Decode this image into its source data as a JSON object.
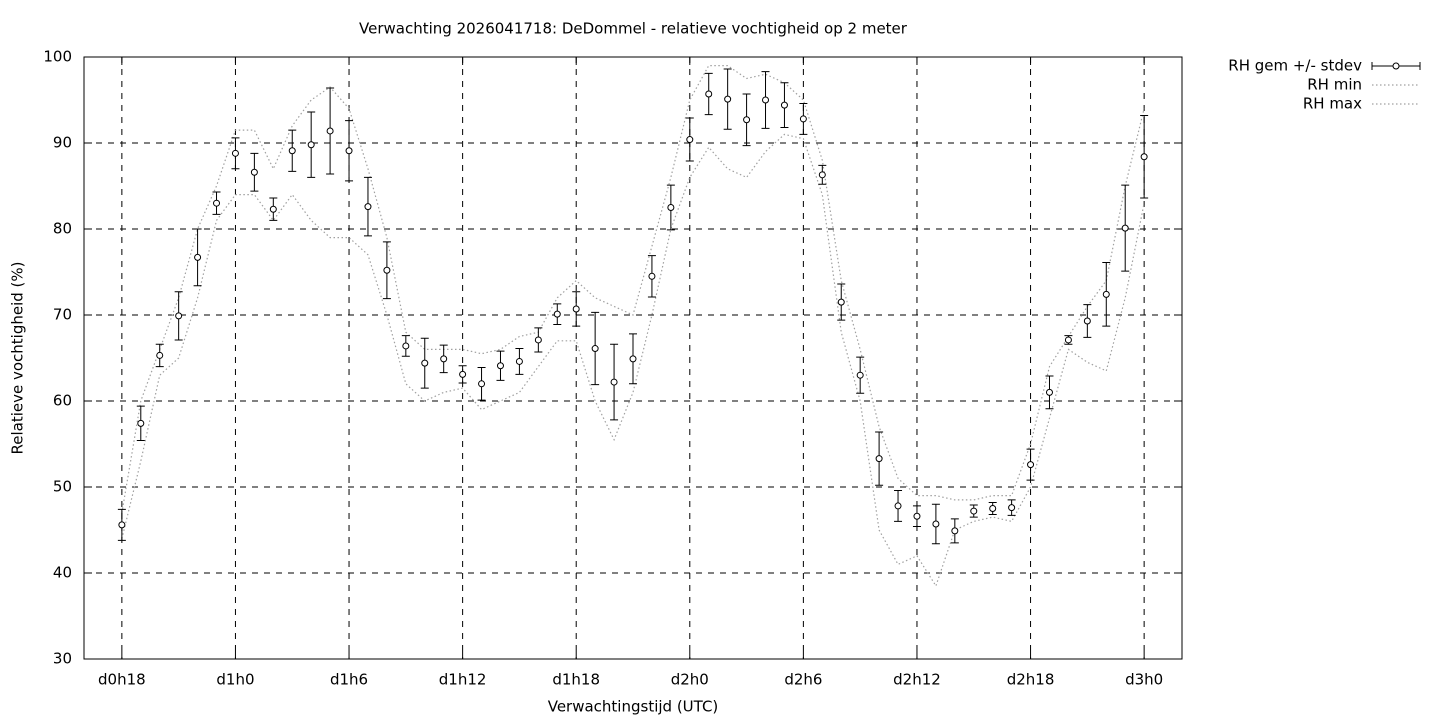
{
  "chart_data": {
    "type": "errorbar",
    "title": "Verwachting 2026041718: DeDommel - relatieve vochtigheid op 2 meter",
    "xlabel": "Verwachtingstijd (UTC)",
    "ylabel": "Relatieve vochtigheid (%)",
    "x": [
      18,
      19,
      20,
      21,
      22,
      23,
      24,
      25,
      26,
      27,
      28,
      29,
      30,
      31,
      32,
      33,
      34,
      35,
      36,
      37,
      38,
      39,
      40,
      41,
      42,
      43,
      44,
      45,
      46,
      47,
      48,
      49,
      50,
      51,
      52,
      53,
      54,
      55,
      56,
      57,
      58,
      59,
      60,
      61,
      62,
      63,
      64,
      65,
      66,
      67,
      68,
      69,
      70,
      71,
      72
    ],
    "series": [
      {
        "name": "RH gem +/- stdev",
        "color": "#000000",
        "style": "errorbar",
        "values": [
          45.6,
          57.4,
          65.3,
          69.9,
          76.7,
          83.0,
          88.8,
          86.6,
          82.3,
          89.1,
          89.8,
          91.4,
          89.1,
          82.6,
          75.2,
          66.4,
          64.4,
          64.9,
          63.1,
          62.0,
          64.1,
          64.6,
          67.1,
          70.1,
          70.7,
          66.1,
          62.2,
          64.9,
          74.5,
          82.5,
          90.4,
          95.7,
          95.1,
          92.7,
          95.0,
          94.4,
          92.8,
          86.3,
          71.5,
          63.0,
          53.3,
          47.8,
          46.6,
          45.7,
          44.9,
          47.2,
          47.5,
          47.6,
          52.6,
          61.0,
          67.1,
          69.3,
          72.4,
          80.1,
          88.4
        ],
        "errors": [
          1.8,
          2,
          1.3,
          2.8,
          3.3,
          1.3,
          1.8,
          2.2,
          1.3,
          2.4,
          3.8,
          5,
          3.5,
          3.4,
          3.3,
          1.2,
          2.9,
          1.6,
          1,
          1.9,
          1.7,
          1.5,
          1.4,
          1.2,
          2,
          4.2,
          4.4,
          2.9,
          2.4,
          2.6,
          2.5,
          2.4,
          3.5,
          3,
          3.3,
          2.6,
          1.8,
          1.1,
          2.1,
          2.1,
          3.1,
          1.8,
          1.2,
          2.3,
          1.4,
          0.7,
          0.7,
          0.9,
          1.8,
          1.9,
          0.5,
          1.9,
          3.7,
          5,
          4.8
        ]
      },
      {
        "name": "RH min",
        "color": "#a0a0a0",
        "style": "dotted",
        "values": [
          44,
          53,
          63,
          65,
          72,
          81,
          84,
          84,
          81,
          84,
          81,
          79,
          79,
          77,
          70,
          62,
          60,
          61,
          61.5,
          59,
          60,
          61,
          64,
          67,
          67,
          60,
          55.5,
          61,
          70,
          80,
          86,
          89.5,
          87,
          86,
          89,
          91,
          90.5,
          84,
          68,
          60,
          45,
          41,
          42,
          38.5,
          45,
          46,
          46.5,
          46,
          50,
          58,
          66,
          64.5,
          63.5,
          72,
          83
        ]
      },
      {
        "name": "RH max",
        "color": "#a0a0a0",
        "style": "dotted",
        "values": [
          47,
          60,
          66,
          72,
          80,
          85,
          91.5,
          91.5,
          87,
          92,
          95,
          96.5,
          94,
          87,
          79,
          68,
          66,
          66,
          66,
          65.5,
          66,
          67.5,
          68,
          72,
          74,
          72,
          71,
          70,
          78,
          86,
          95,
          99,
          99,
          97.5,
          98,
          97,
          95,
          88,
          74,
          66,
          57,
          51,
          49,
          49,
          48.5,
          48.5,
          49,
          49,
          55,
          64,
          67.5,
          71,
          74,
          85,
          94
        ]
      }
    ],
    "xlim": [
      16,
      74
    ],
    "xticks": [
      {
        "value": 18,
        "label": "d0h18"
      },
      {
        "value": 24,
        "label": "d1h0"
      },
      {
        "value": 30,
        "label": "d1h6"
      },
      {
        "value": 36,
        "label": "d1h12"
      },
      {
        "value": 42,
        "label": "d1h18"
      },
      {
        "value": 48,
        "label": "d2h0"
      },
      {
        "value": 54,
        "label": "d2h6"
      },
      {
        "value": 60,
        "label": "d2h12"
      },
      {
        "value": 66,
        "label": "d2h18"
      },
      {
        "value": 72,
        "label": "d3h0"
      }
    ],
    "ylim": [
      30,
      100
    ],
    "yticks": [
      30,
      40,
      50,
      60,
      70,
      80,
      90,
      100
    ],
    "grid": true,
    "legend": "outside-right"
  }
}
